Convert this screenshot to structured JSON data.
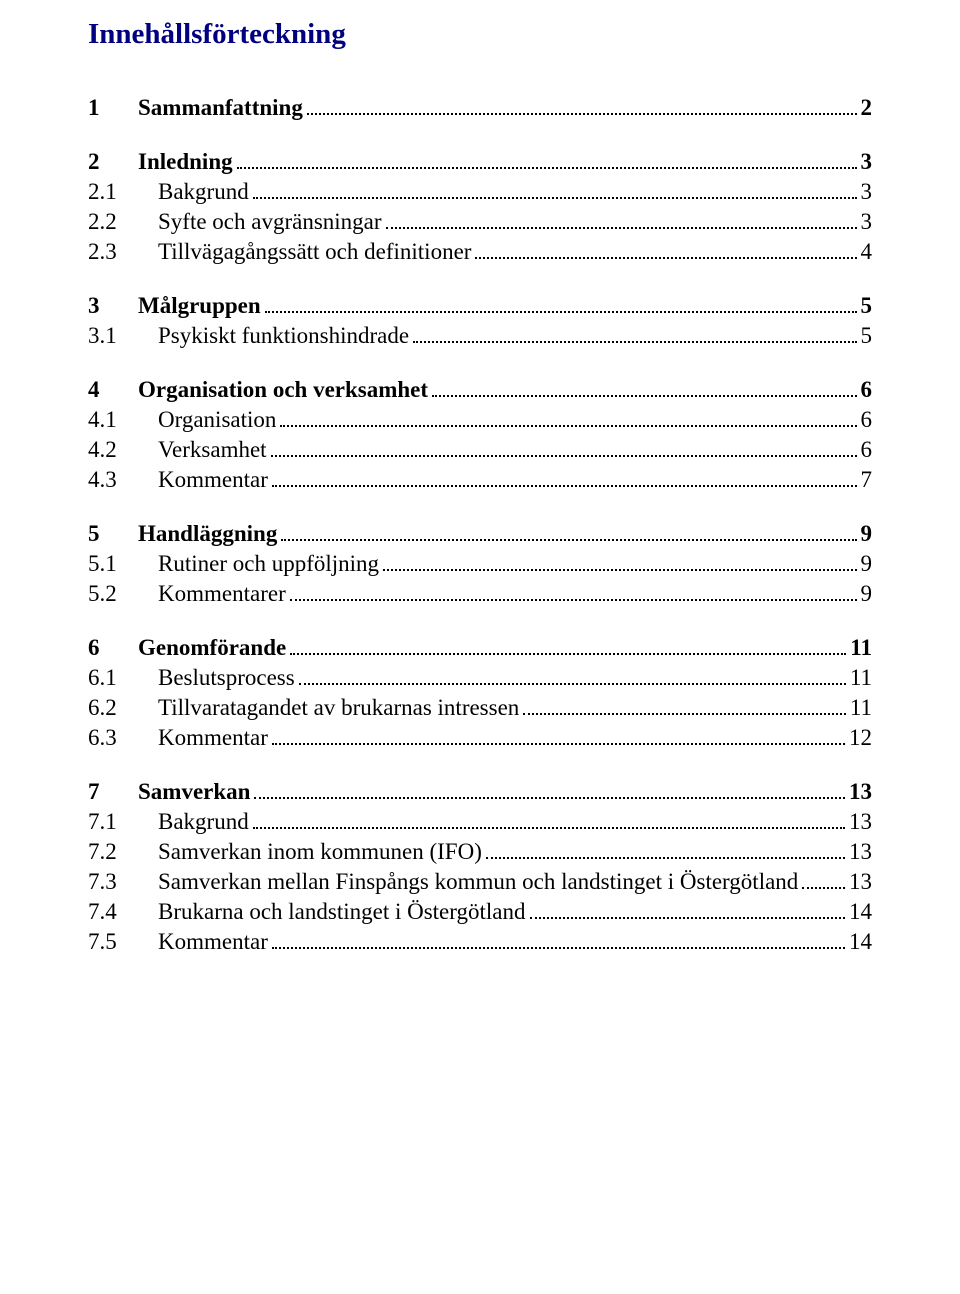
{
  "title": "Innehållsförteckning",
  "colors": {
    "title_color": "#000080",
    "text_color": "#000000",
    "background": "#ffffff"
  },
  "typography": {
    "title_fontsize": 29,
    "entry_fontsize": 23,
    "font_family": "Times New Roman"
  },
  "toc": [
    {
      "level": 1,
      "num": "1",
      "label": "Sammanfattning",
      "page": "2"
    },
    {
      "level": 1,
      "num": "2",
      "label": "Inledning",
      "page": "3"
    },
    {
      "level": 2,
      "num": "2.1",
      "label": "Bakgrund",
      "page": "3"
    },
    {
      "level": 2,
      "num": "2.2",
      "label": "Syfte och avgränsningar",
      "page": "3"
    },
    {
      "level": 2,
      "num": "2.3",
      "label": "Tillvägagångssätt och definitioner",
      "page": "4"
    },
    {
      "level": 1,
      "num": "3",
      "label": "Målgruppen",
      "page": "5"
    },
    {
      "level": 2,
      "num": "3.1",
      "label": "Psykiskt funktionshindrade",
      "page": "5"
    },
    {
      "level": 1,
      "num": "4",
      "label": "Organisation och verksamhet",
      "page": "6"
    },
    {
      "level": 2,
      "num": "4.1",
      "label": "Organisation",
      "page": "6"
    },
    {
      "level": 2,
      "num": "4.2",
      "label": "Verksamhet",
      "page": "6"
    },
    {
      "level": 2,
      "num": "4.3",
      "label": "Kommentar",
      "page": "7"
    },
    {
      "level": 1,
      "num": "5",
      "label": "Handläggning",
      "page": "9"
    },
    {
      "level": 2,
      "num": "5.1",
      "label": "Rutiner och uppföljning",
      "page": "9"
    },
    {
      "level": 2,
      "num": "5.2",
      "label": "Kommentarer",
      "page": "9"
    },
    {
      "level": 1,
      "num": "6",
      "label": "Genomförande",
      "page": "11"
    },
    {
      "level": 2,
      "num": "6.1",
      "label": "Beslutsprocess",
      "page": "11"
    },
    {
      "level": 2,
      "num": "6.2",
      "label": "Tillvaratagandet av brukarnas intressen",
      "page": "11"
    },
    {
      "level": 2,
      "num": "6.3",
      "label": "Kommentar",
      "page": "12"
    },
    {
      "level": 1,
      "num": "7",
      "label": "Samverkan",
      "page": "13"
    },
    {
      "level": 2,
      "num": "7.1",
      "label": "Bakgrund",
      "page": "13"
    },
    {
      "level": 2,
      "num": "7.2",
      "label": "Samverkan inom kommunen (IFO)",
      "page": "13"
    },
    {
      "level": 2,
      "num": "7.3",
      "label": "Samverkan mellan Finspångs kommun och landstinget i Östergötland",
      "page": "13"
    },
    {
      "level": 2,
      "num": "7.4",
      "label": "Brukarna och landstinget i Östergötland",
      "page": "14"
    },
    {
      "level": 2,
      "num": "7.5",
      "label": "Kommentar",
      "page": "14"
    }
  ]
}
